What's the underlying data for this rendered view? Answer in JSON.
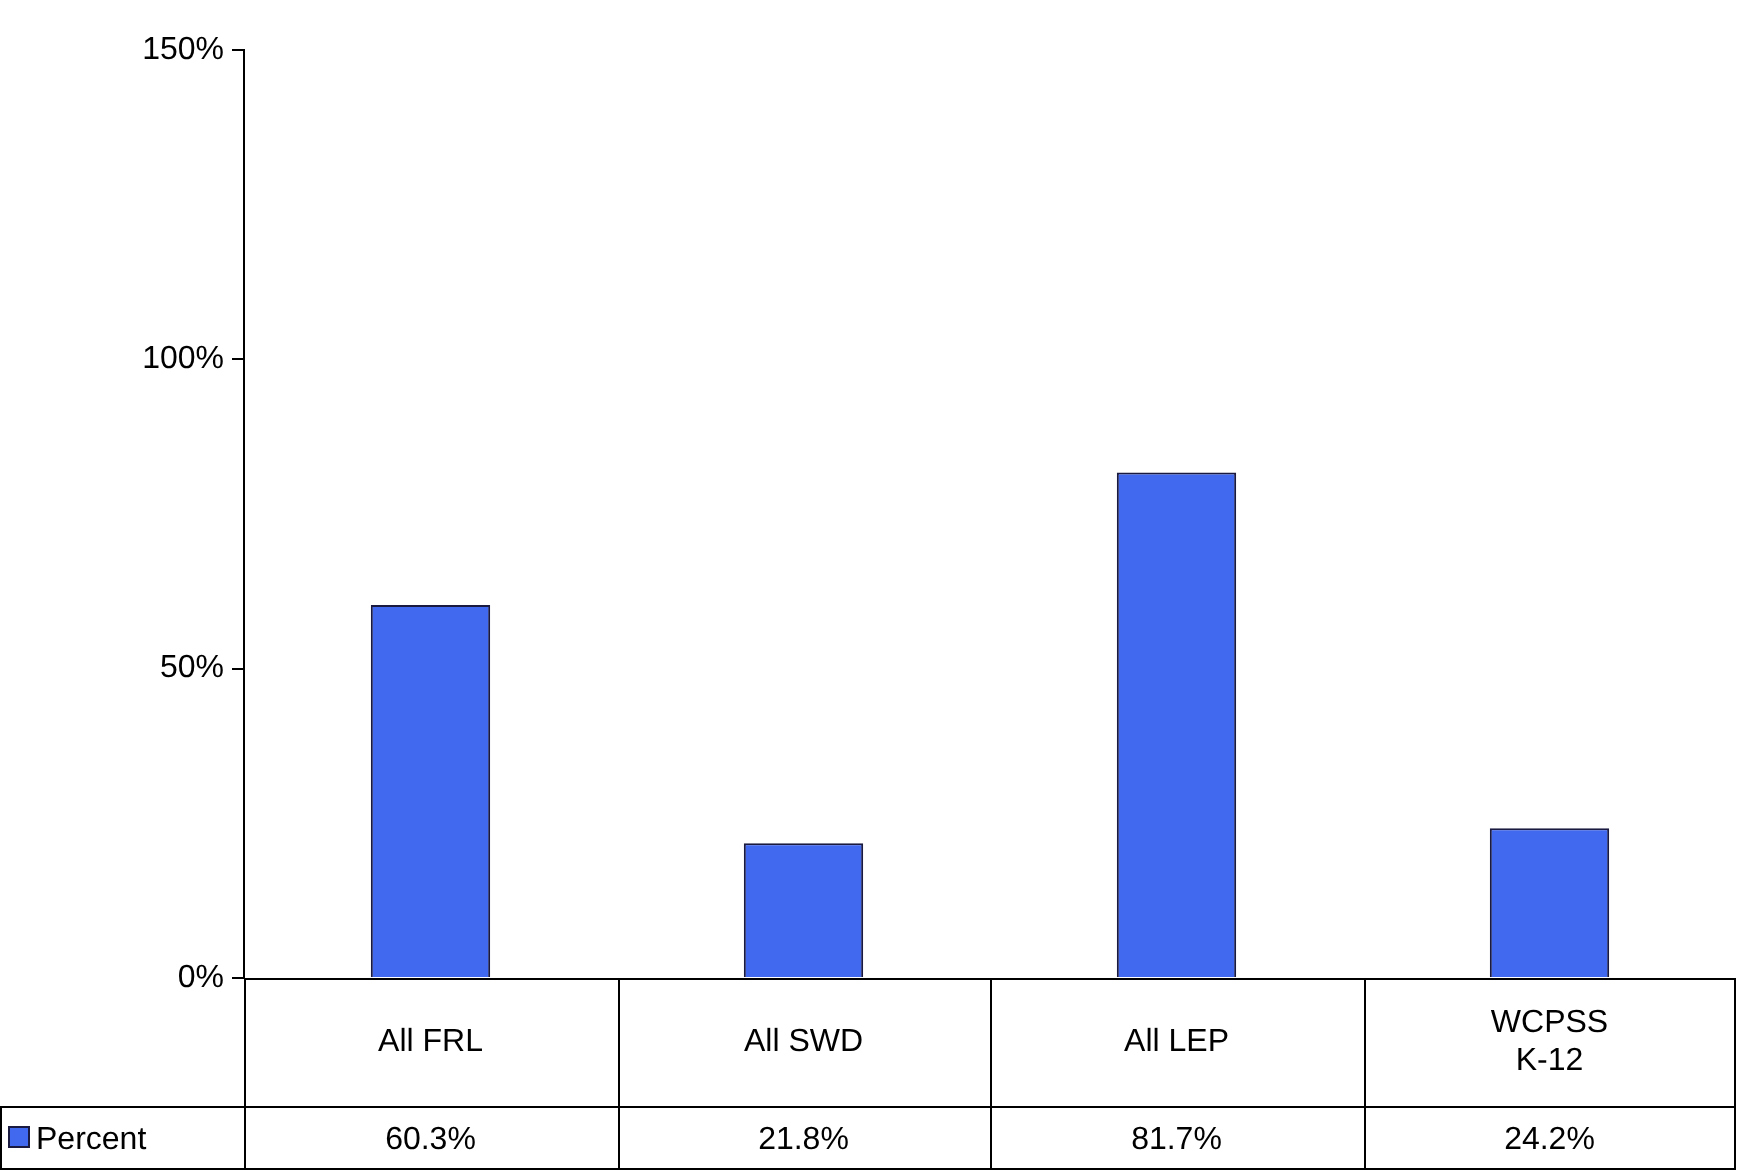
{
  "chart_data": {
    "type": "bar",
    "categories": [
      "All FRL",
      "All SWD",
      "All LEP",
      "WCPSS K-12"
    ],
    "series": [
      {
        "name": "Percent",
        "color": "#4169f0",
        "values": [
          60.3,
          21.8,
          81.7,
          24.2
        ],
        "value_labels": [
          "60.3%",
          "21.8%",
          "81.7%",
          "24.2%"
        ]
      }
    ],
    "ylim": [
      0,
      150
    ],
    "yticks": [
      {
        "value": 0,
        "label": "0%"
      },
      {
        "value": 50,
        "label": "50%"
      },
      {
        "value": 100,
        "label": "100%"
      },
      {
        "value": 150,
        "label": "150%"
      }
    ],
    "grid": false,
    "legend": "bottom left"
  }
}
